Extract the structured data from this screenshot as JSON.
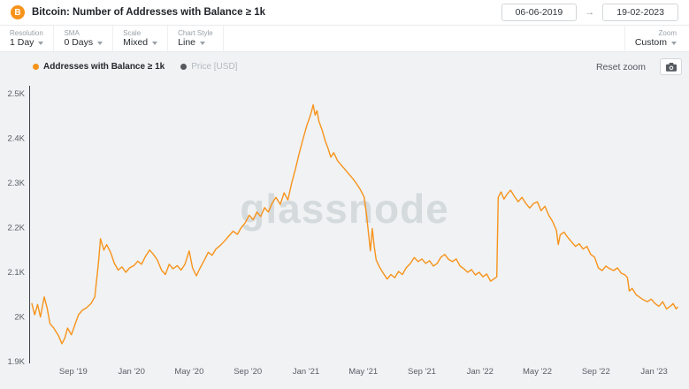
{
  "header": {
    "coin_symbol": "B",
    "title": "Bitcoin: Number of Addresses with Balance ≥ 1k",
    "date_from": "06-06-2019",
    "date_to": "19-02-2023",
    "arrow": "→"
  },
  "toolbar": {
    "groups": [
      {
        "label": "Resolution",
        "value": "1 Day"
      },
      {
        "label": "SMA",
        "value": "0 Days"
      },
      {
        "label": "Scale",
        "value": "Mixed"
      },
      {
        "label": "Chart Style",
        "value": "Line"
      }
    ],
    "zoom": {
      "label": "Zoom",
      "value": "Custom"
    }
  },
  "chart_header": {
    "legend": [
      {
        "label": "Addresses with Balance ≥ 1k",
        "color": "#f7931a",
        "active": true
      },
      {
        "label": "Price [USD]",
        "color": "#55585c",
        "active": false
      }
    ],
    "reset_zoom": "Reset zoom"
  },
  "watermark": "glassnode",
  "colors": {
    "accent": "#f7931a",
    "line": "#f7931a",
    "chart_bg": "#f0f2f4"
  },
  "chart_data": {
    "type": "line",
    "title": "Bitcoin: Number of Addresses with Balance ≥ 1k",
    "series_name": "Addresses with Balance ≥ 1k",
    "unit": "thousands of addresses",
    "grid": false,
    "legend_position": "top-left",
    "x_domain": [
      "2019-06-06",
      "2023-02-19"
    ],
    "y_domain": [
      1.9,
      2.5
    ],
    "y_ticks": [
      {
        "label": "2.5K",
        "value": 2.5
      },
      {
        "label": "2.4K",
        "value": 2.4
      },
      {
        "label": "2.3K",
        "value": 2.3
      },
      {
        "label": "2.2K",
        "value": 2.2
      },
      {
        "label": "2.1K",
        "value": 2.1
      },
      {
        "label": "2K",
        "value": 2.0
      },
      {
        "label": "1.9K",
        "value": 1.9
      }
    ],
    "x_ticks": [
      {
        "label": "Sep '19",
        "date": "2019-09-01"
      },
      {
        "label": "Jan '20",
        "date": "2020-01-01"
      },
      {
        "label": "May '20",
        "date": "2020-05-01"
      },
      {
        "label": "Sep '20",
        "date": "2020-09-01"
      },
      {
        "label": "Jan '21",
        "date": "2021-01-01"
      },
      {
        "label": "May '21",
        "date": "2021-05-01"
      },
      {
        "label": "Sep '21",
        "date": "2021-09-01"
      },
      {
        "label": "Jan '22",
        "date": "2022-01-01"
      },
      {
        "label": "May '22",
        "date": "2022-05-01"
      },
      {
        "label": "Sep '22",
        "date": "2022-09-01"
      },
      {
        "label": "Jan '23",
        "date": "2023-01-01"
      }
    ],
    "points": [
      [
        "2019-06-06",
        2.03
      ],
      [
        "2019-06-12",
        2.005
      ],
      [
        "2019-06-18",
        2.028
      ],
      [
        "2019-06-24",
        2.0
      ],
      [
        "2019-07-02",
        2.045
      ],
      [
        "2019-07-08",
        2.02
      ],
      [
        "2019-07-14",
        1.985
      ],
      [
        "2019-07-22",
        1.975
      ],
      [
        "2019-08-01",
        1.958
      ],
      [
        "2019-08-08",
        1.94
      ],
      [
        "2019-08-14",
        1.952
      ],
      [
        "2019-08-20",
        1.975
      ],
      [
        "2019-08-28",
        1.96
      ],
      [
        "2019-09-05",
        1.985
      ],
      [
        "2019-09-12",
        2.005
      ],
      [
        "2019-09-20",
        2.015
      ],
      [
        "2019-09-28",
        2.02
      ],
      [
        "2019-10-08",
        2.03
      ],
      [
        "2019-10-16",
        2.045
      ],
      [
        "2019-10-24",
        2.125
      ],
      [
        "2019-10-28",
        2.175
      ],
      [
        "2019-11-04",
        2.15
      ],
      [
        "2019-11-10",
        2.162
      ],
      [
        "2019-11-18",
        2.145
      ],
      [
        "2019-11-26",
        2.12
      ],
      [
        "2019-12-04",
        2.105
      ],
      [
        "2019-12-12",
        2.112
      ],
      [
        "2019-12-20",
        2.1
      ],
      [
        "2019-12-28",
        2.11
      ],
      [
        "2020-01-06",
        2.115
      ],
      [
        "2020-01-14",
        2.125
      ],
      [
        "2020-01-22",
        2.118
      ],
      [
        "2020-01-30",
        2.135
      ],
      [
        "2020-02-08",
        2.15
      ],
      [
        "2020-02-16",
        2.14
      ],
      [
        "2020-02-24",
        2.128
      ],
      [
        "2020-03-04",
        2.105
      ],
      [
        "2020-03-12",
        2.095
      ],
      [
        "2020-03-20",
        2.118
      ],
      [
        "2020-03-28",
        2.108
      ],
      [
        "2020-04-06",
        2.115
      ],
      [
        "2020-04-14",
        2.105
      ],
      [
        "2020-04-22",
        2.118
      ],
      [
        "2020-05-01",
        2.148
      ],
      [
        "2020-05-08",
        2.11
      ],
      [
        "2020-05-16",
        2.092
      ],
      [
        "2020-05-24",
        2.11
      ],
      [
        "2020-06-02",
        2.128
      ],
      [
        "2020-06-10",
        2.145
      ],
      [
        "2020-06-18",
        2.138
      ],
      [
        "2020-06-26",
        2.152
      ],
      [
        "2020-07-05",
        2.16
      ],
      [
        "2020-07-14",
        2.17
      ],
      [
        "2020-07-22",
        2.18
      ],
      [
        "2020-08-01",
        2.192
      ],
      [
        "2020-08-10",
        2.185
      ],
      [
        "2020-08-18",
        2.2
      ],
      [
        "2020-08-26",
        2.21
      ],
      [
        "2020-09-04",
        2.228
      ],
      [
        "2020-09-12",
        2.218
      ],
      [
        "2020-09-20",
        2.235
      ],
      [
        "2020-09-28",
        2.225
      ],
      [
        "2020-10-06",
        2.245
      ],
      [
        "2020-10-14",
        2.235
      ],
      [
        "2020-10-22",
        2.255
      ],
      [
        "2020-10-30",
        2.268
      ],
      [
        "2020-11-08",
        2.252
      ],
      [
        "2020-11-16",
        2.278
      ],
      [
        "2020-11-24",
        2.262
      ],
      [
        "2020-12-02",
        2.3
      ],
      [
        "2020-12-10",
        2.332
      ],
      [
        "2020-12-18",
        2.368
      ],
      [
        "2020-12-26",
        2.4
      ],
      [
        "2021-01-03",
        2.43
      ],
      [
        "2021-01-08",
        2.445
      ],
      [
        "2021-01-12",
        2.458
      ],
      [
        "2021-01-16",
        2.475
      ],
      [
        "2021-01-20",
        2.452
      ],
      [
        "2021-01-24",
        2.462
      ],
      [
        "2021-01-28",
        2.438
      ],
      [
        "2021-02-04",
        2.418
      ],
      [
        "2021-02-10",
        2.395
      ],
      [
        "2021-02-16",
        2.378
      ],
      [
        "2021-02-22",
        2.358
      ],
      [
        "2021-02-28",
        2.368
      ],
      [
        "2021-03-08",
        2.35
      ],
      [
        "2021-03-16",
        2.34
      ],
      [
        "2021-03-24",
        2.33
      ],
      [
        "2021-04-01",
        2.32
      ],
      [
        "2021-04-09",
        2.31
      ],
      [
        "2021-04-17",
        2.298
      ],
      [
        "2021-04-25",
        2.285
      ],
      [
        "2021-05-03",
        2.268
      ],
      [
        "2021-05-08",
        2.228
      ],
      [
        "2021-05-12",
        2.188
      ],
      [
        "2021-05-16",
        2.148
      ],
      [
        "2021-05-20",
        2.198
      ],
      [
        "2021-05-24",
        2.158
      ],
      [
        "2021-05-28",
        2.128
      ],
      [
        "2021-06-04",
        2.112
      ],
      [
        "2021-06-12",
        2.098
      ],
      [
        "2021-06-20",
        2.085
      ],
      [
        "2021-06-28",
        2.095
      ],
      [
        "2021-07-06",
        2.088
      ],
      [
        "2021-07-14",
        2.102
      ],
      [
        "2021-07-22",
        2.095
      ],
      [
        "2021-07-30",
        2.11
      ],
      [
        "2021-08-08",
        2.12
      ],
      [
        "2021-08-16",
        2.133
      ],
      [
        "2021-08-24",
        2.124
      ],
      [
        "2021-09-01",
        2.13
      ],
      [
        "2021-09-09",
        2.12
      ],
      [
        "2021-09-17",
        2.126
      ],
      [
        "2021-09-25",
        2.114
      ],
      [
        "2021-10-03",
        2.12
      ],
      [
        "2021-10-11",
        2.134
      ],
      [
        "2021-10-19",
        2.14
      ],
      [
        "2021-10-27",
        2.129
      ],
      [
        "2021-11-04",
        2.124
      ],
      [
        "2021-11-12",
        2.13
      ],
      [
        "2021-11-20",
        2.114
      ],
      [
        "2021-11-28",
        2.108
      ],
      [
        "2021-12-06",
        2.1
      ],
      [
        "2021-12-14",
        2.106
      ],
      [
        "2021-12-22",
        2.094
      ],
      [
        "2021-12-30",
        2.1
      ],
      [
        "2022-01-07",
        2.09
      ],
      [
        "2022-01-15",
        2.096
      ],
      [
        "2022-01-23",
        2.08
      ],
      [
        "2022-01-31",
        2.086
      ],
      [
        "2022-02-05",
        2.09
      ],
      [
        "2022-02-08",
        2.268
      ],
      [
        "2022-02-14",
        2.28
      ],
      [
        "2022-02-20",
        2.264
      ],
      [
        "2022-02-26",
        2.274
      ],
      [
        "2022-03-06",
        2.284
      ],
      [
        "2022-03-14",
        2.27
      ],
      [
        "2022-03-22",
        2.258
      ],
      [
        "2022-03-30",
        2.268
      ],
      [
        "2022-04-07",
        2.254
      ],
      [
        "2022-04-15",
        2.244
      ],
      [
        "2022-04-23",
        2.254
      ],
      [
        "2022-05-01",
        2.258
      ],
      [
        "2022-05-09",
        2.238
      ],
      [
        "2022-05-17",
        2.248
      ],
      [
        "2022-05-25",
        2.228
      ],
      [
        "2022-06-02",
        2.214
      ],
      [
        "2022-06-10",
        2.194
      ],
      [
        "2022-06-14",
        2.162
      ],
      [
        "2022-06-18",
        2.184
      ],
      [
        "2022-06-26",
        2.19
      ],
      [
        "2022-07-04",
        2.178
      ],
      [
        "2022-07-12",
        2.168
      ],
      [
        "2022-07-20",
        2.158
      ],
      [
        "2022-07-28",
        2.164
      ],
      [
        "2022-08-05",
        2.152
      ],
      [
        "2022-08-13",
        2.158
      ],
      [
        "2022-08-21",
        2.14
      ],
      [
        "2022-08-29",
        2.134
      ],
      [
        "2022-09-06",
        2.11
      ],
      [
        "2022-09-14",
        2.104
      ],
      [
        "2022-09-22",
        2.114
      ],
      [
        "2022-09-30",
        2.108
      ],
      [
        "2022-10-08",
        2.104
      ],
      [
        "2022-10-16",
        2.11
      ],
      [
        "2022-10-24",
        2.098
      ],
      [
        "2022-11-01",
        2.094
      ],
      [
        "2022-11-06",
        2.088
      ],
      [
        "2022-11-10",
        2.058
      ],
      [
        "2022-11-16",
        2.064
      ],
      [
        "2022-11-24",
        2.05
      ],
      [
        "2022-12-02",
        2.044
      ],
      [
        "2022-12-10",
        2.038
      ],
      [
        "2022-12-18",
        2.034
      ],
      [
        "2022-12-26",
        2.04
      ],
      [
        "2023-01-03",
        2.03
      ],
      [
        "2023-01-11",
        2.024
      ],
      [
        "2023-01-19",
        2.034
      ],
      [
        "2023-01-27",
        2.018
      ],
      [
        "2023-02-04",
        2.024
      ],
      [
        "2023-02-10",
        2.03
      ],
      [
        "2023-02-16",
        2.018
      ],
      [
        "2023-02-19",
        2.022
      ]
    ]
  }
}
